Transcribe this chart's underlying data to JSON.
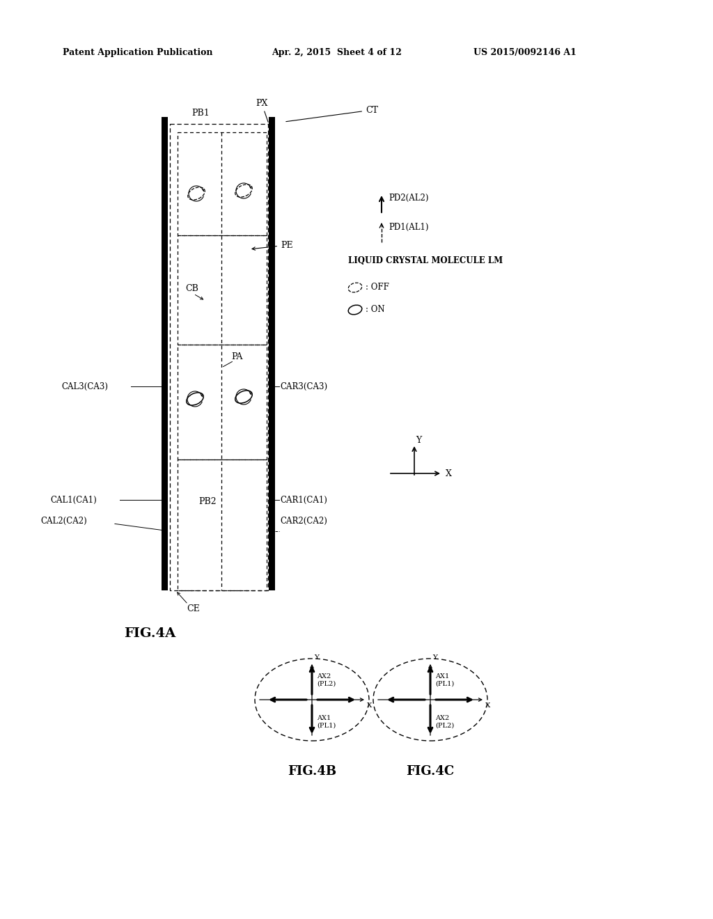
{
  "bg_color": "#ffffff",
  "header_left": "Patent Application Publication",
  "header_mid": "Apr. 2, 2015  Sheet 4 of 12",
  "header_right": "US 2015/0092146 A1",
  "fig4a_label": "FIG.4A",
  "fig4b_label": "FIG.4B",
  "fig4c_label": "FIG.4C"
}
